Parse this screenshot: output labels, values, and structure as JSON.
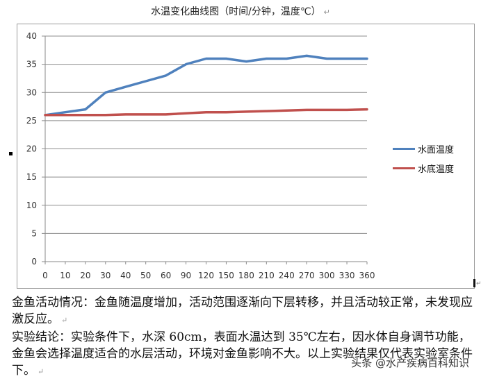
{
  "chart_data": {
    "type": "line",
    "title": "水温变化曲线图（时间/分钟，温度℃）",
    "xlabel": "",
    "ylabel": "",
    "categories": [
      "0",
      "10",
      "20",
      "30",
      "40",
      "50",
      "60",
      "90",
      "120",
      "150",
      "180",
      "210",
      "240",
      "270",
      "300",
      "330",
      "360"
    ],
    "series": [
      {
        "name": "水面温度",
        "color": "#4f81bd",
        "values": [
          26,
          26.5,
          27,
          30,
          31,
          32,
          33,
          35,
          36,
          36,
          35.5,
          36,
          36,
          36.5,
          36,
          36,
          36
        ]
      },
      {
        "name": "水底温度",
        "color": "#c0504d",
        "values": [
          26,
          26,
          26,
          26,
          26.1,
          26.1,
          26.1,
          26.3,
          26.5,
          26.5,
          26.6,
          26.7,
          26.8,
          26.9,
          26.9,
          26.9,
          27
        ]
      }
    ],
    "ylim": [
      0,
      40
    ],
    "yticks": [
      "0",
      "5",
      "10",
      "15",
      "20",
      "25",
      "30",
      "35",
      "40"
    ],
    "grid": true,
    "legend_position": "right"
  },
  "title": "水温变化曲线图（时间/分钟，温度℃）",
  "paragraph_mark": "↵",
  "legend": [
    {
      "label": "水面温度",
      "color": "#4f81bd"
    },
    {
      "label": "水底温度",
      "color": "#c0504d"
    }
  ],
  "body_text": {
    "observation": "金鱼活动情况：金鱼随温度增加，活动范围逐渐向下层转移，并且活动较正常，未发现应激反应。",
    "conclusion": "实验结论：实验条件下，水深 60cm，表面水温达到 35℃左右，因水体自身调节功能，金鱼会选择温度适合的水层活动，环境对金鱼影响不大。以上实验结果仅代表实验室条件下。"
  },
  "watermark": "头条 @水产疾病百科知识"
}
